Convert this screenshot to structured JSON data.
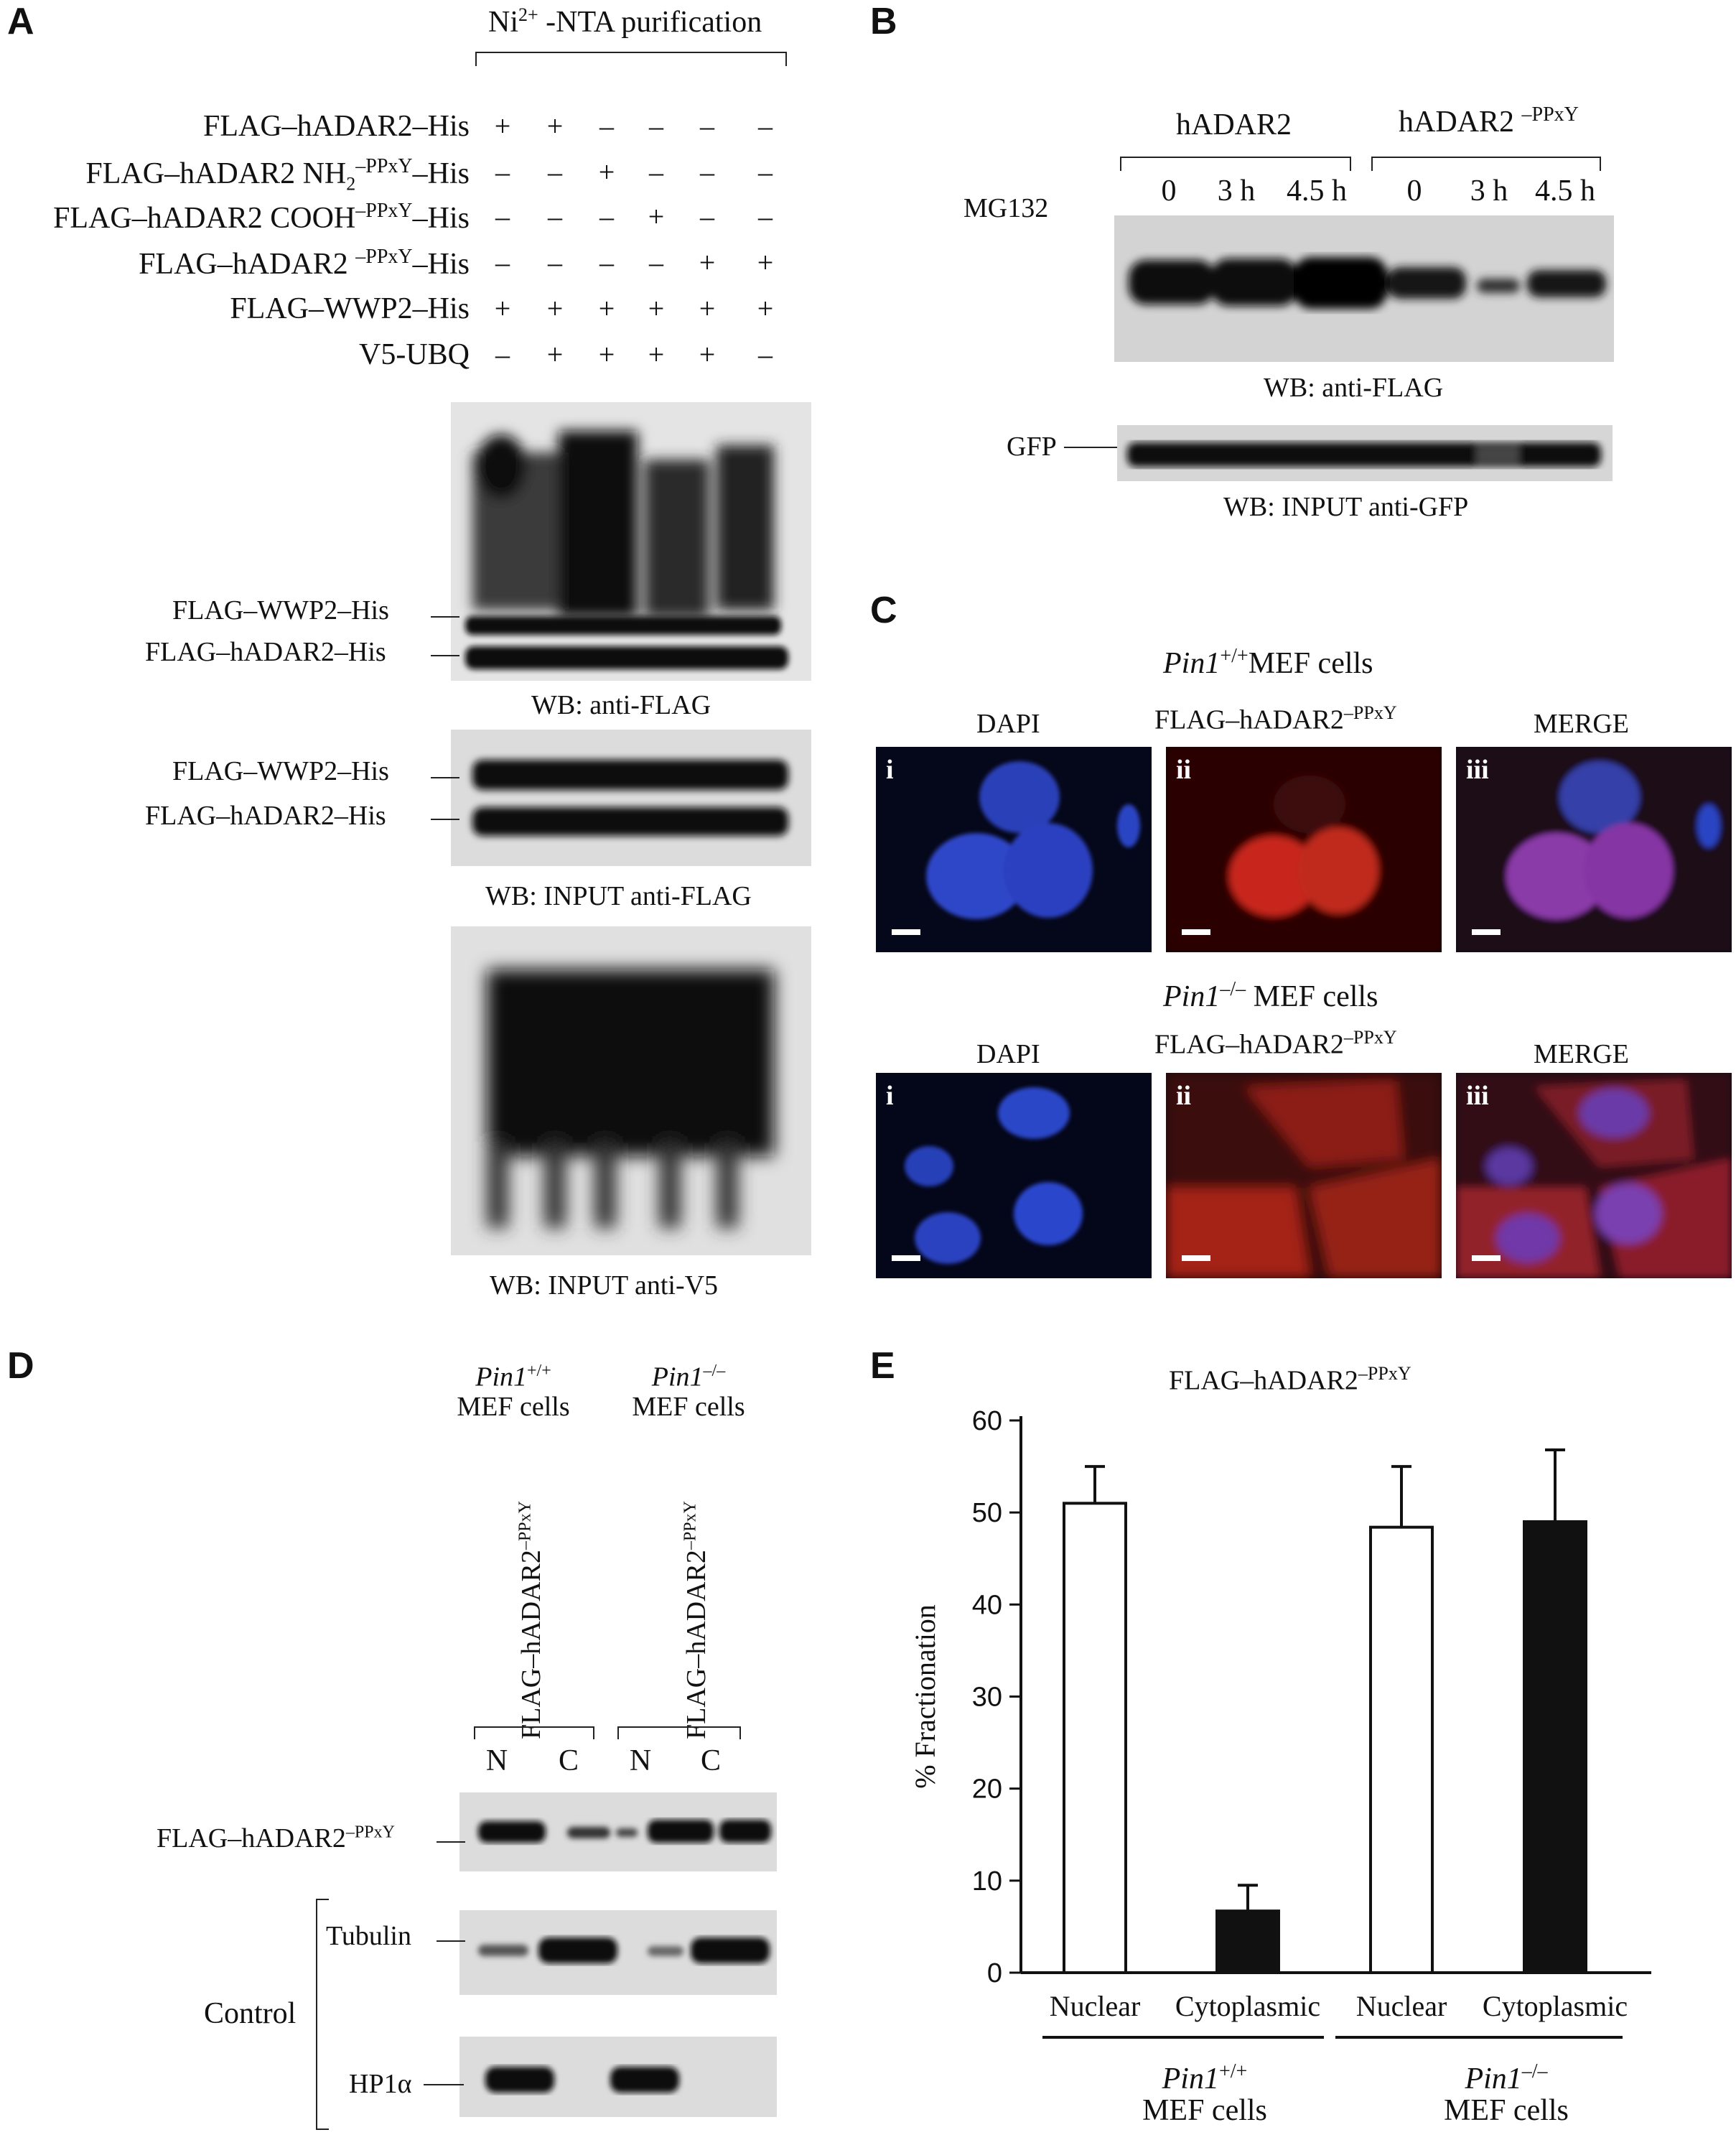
{
  "panelA": {
    "label": "A",
    "header": "Ni2+ -NTA purification",
    "header_sup": "2+",
    "header_pre": "Ni",
    "header_post": " -NTA purification",
    "rows": [
      {
        "label": "FLAG–hADAR2–His",
        "signs": [
          "+",
          "+",
          "–",
          "–",
          "–",
          "–"
        ]
      },
      {
        "label_pre": "FLAG–hADAR2 NH",
        "label_sub": "2",
        "label_sup": "–PPxY",
        "label_post": "–His",
        "signs": [
          "–",
          "–",
          "+",
          "–",
          "–",
          "–"
        ]
      },
      {
        "label_pre": "FLAG–hADAR2 COOH",
        "label_sup": "–PPxY",
        "label_post": "–His",
        "signs": [
          "–",
          "–",
          "–",
          "+",
          "–",
          "–"
        ]
      },
      {
        "label_pre": "FLAG–hADAR2 ",
        "label_sup": "–PPxY",
        "label_post": "–His",
        "signs": [
          "–",
          "–",
          "–",
          "–",
          "+",
          "+"
        ]
      },
      {
        "label": "FLAG–WWP2–His",
        "signs": [
          "+",
          "+",
          "+",
          "+",
          "+",
          "+"
        ]
      },
      {
        "label": "V5-UBQ",
        "signs": [
          "–",
          "+",
          "+",
          "+",
          "+",
          "–"
        ]
      }
    ],
    "blot1_bands": [
      "FLAG–WWP2–His",
      "FLAG–hADAR2–His"
    ],
    "blot1_caption": "WB: anti-FLAG",
    "blot2_bands": [
      "FLAG–WWP2–His",
      "FLAG–hADAR2–His"
    ],
    "blot2_caption": "WB: INPUT anti-FLAG",
    "blot3_caption": "WB: INPUT anti-V5"
  },
  "panelB": {
    "label": "B",
    "group1": "hADAR2",
    "group2_pre": "hADAR2 ",
    "group2_sup": "–PPxY",
    "treatment": "MG132",
    "timepoints": [
      "0",
      "3 h",
      "4.5 h",
      "0",
      "3 h",
      "4.5 h"
    ],
    "blot1_caption": "WB: anti-FLAG",
    "blot2_band": "GFP",
    "blot2_caption": "WB: INPUT anti-GFP"
  },
  "panelC": {
    "label": "C",
    "row1_title_italic": "Pin1",
    "row1_title_sup": "+/+",
    "row1_title_rest": "MEF cells",
    "row2_title_italic": "Pin1",
    "row2_title_sup": "–/–",
    "row2_title_rest": " MEF cells",
    "col_dapi": "DAPI",
    "col_flag_pre": "FLAG–hADAR2",
    "col_flag_sup": "–PPxY",
    "col_merge": "MERGE",
    "tags": [
      "i",
      "ii",
      "iii"
    ]
  },
  "panelD": {
    "label": "D",
    "col1_italic": "Pin1",
    "col1_sup": "+/+",
    "col1_rest": "MEF cells",
    "col2_italic": "Pin1",
    "col2_sup": "–/–",
    "col2_rest": "MEF cells",
    "rot_label_pre": "FLAG–hADAR2",
    "rot_label_sup": "–PPxY",
    "lanes": [
      "N",
      "C",
      "N",
      "C"
    ],
    "band1_pre": "FLAG–hADAR2",
    "band1_sup": "–PPxY",
    "band2": "Tubulin",
    "band3": "HP1α",
    "control": "Control"
  },
  "panelE": {
    "label": "E",
    "title_pre": "FLAG–hADAR2",
    "title_sup": "–PPxY",
    "group1_italic": "Pin1",
    "group1_sup": "+/+",
    "group1_rest": "MEF cells",
    "group2_italic": "Pin1",
    "group2_sup": "–/–",
    "group2_rest": "MEF cells"
  },
  "chart_data": {
    "type": "bar",
    "title": "FLAG–hADAR2–PPxY",
    "categories": [
      "Nuclear",
      "Cytoplasmic",
      "Nuclear",
      "Cytoplasmic"
    ],
    "groups": [
      "Pin1+/+ MEF cells",
      "Pin1–/– MEF cells"
    ],
    "values": [
      51,
      6.7,
      48.4,
      49
    ],
    "errors": [
      4,
      2.8,
      6.6,
      7.8
    ],
    "fills": [
      "#ffffff",
      "#111111",
      "#ffffff",
      "#111111"
    ],
    "ylabel": "% Fractionation",
    "ylim": [
      0,
      60
    ],
    "yticks": [
      0,
      10,
      20,
      30,
      40,
      50,
      60
    ],
    "grid": false
  }
}
